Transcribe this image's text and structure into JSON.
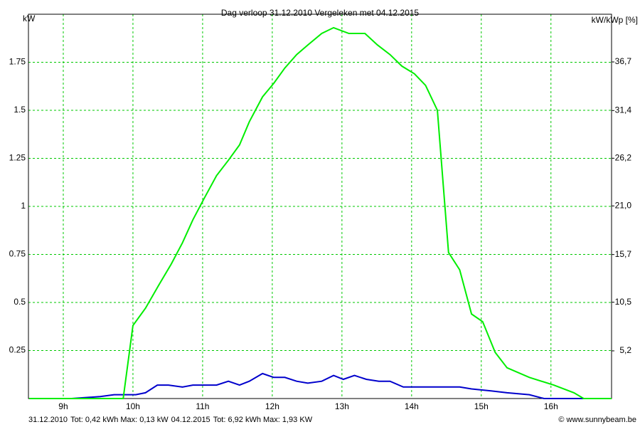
{
  "chart_data": {
    "type": "line",
    "title": "Dag  verloop 31.12.2010   Vergeleken met 04.12.2015",
    "y_label": "kW",
    "y2_label": "kW/kWp [%]",
    "xlim": [
      8.5,
      16.87
    ],
    "xticks": [
      {
        "value": 9,
        "label": "9h"
      },
      {
        "value": 10,
        "label": "10h"
      },
      {
        "value": 11,
        "label": "11h"
      },
      {
        "value": 12,
        "label": "12h"
      },
      {
        "value": 13,
        "label": "13h"
      },
      {
        "value": 14,
        "label": "14h"
      },
      {
        "value": 15,
        "label": "15h"
      },
      {
        "value": 16,
        "label": "16h"
      }
    ],
    "ylim": [
      0,
      2
    ],
    "yticks": [
      0.25,
      0.5,
      0.75,
      1,
      1.25,
      1.5,
      1.75
    ],
    "y2lim": [
      0,
      41.9
    ],
    "y2ticks": [
      {
        "value": 5.2,
        "label": "5,2"
      },
      {
        "value": 10.5,
        "label": "10,5"
      },
      {
        "value": 15.7,
        "label": "15,7"
      },
      {
        "value": 21.0,
        "label": "21,0"
      },
      {
        "value": 26.2,
        "label": "26,2"
      },
      {
        "value": 31.4,
        "label": "31,4"
      },
      {
        "value": 36.7,
        "label": "36,7"
      }
    ],
    "grid": true,
    "grid_color": "#00c800",
    "series": [
      {
        "name": "31.12.2010",
        "summary": "Tot: 0,42 kWh Max: 0,13 kW",
        "color": "#0000cc",
        "x": [
          8.51,
          9.12,
          9.53,
          9.73,
          10.04,
          10.18,
          10.35,
          10.51,
          10.71,
          10.86,
          11.02,
          11.2,
          11.37,
          11.53,
          11.67,
          11.86,
          12.02,
          12.18,
          12.35,
          12.51,
          12.71,
          12.88,
          13.02,
          13.18,
          13.35,
          13.53,
          13.69,
          13.88,
          14.04,
          14.37,
          14.69,
          14.86,
          15.14,
          15.37,
          15.69,
          15.9,
          16.87
        ],
        "values": [
          0,
          0,
          0.01,
          0.02,
          0.02,
          0.03,
          0.07,
          0.07,
          0.06,
          0.07,
          0.07,
          0.07,
          0.09,
          0.07,
          0.09,
          0.13,
          0.11,
          0.11,
          0.09,
          0.08,
          0.09,
          0.12,
          0.1,
          0.12,
          0.1,
          0.09,
          0.09,
          0.06,
          0.06,
          0.06,
          0.06,
          0.05,
          0.04,
          0.03,
          0.02,
          0,
          0
        ]
      },
      {
        "name": "04.12.2015",
        "summary": "Tot: 6,92 kWh Max: 1,93 KW",
        "color": "#00ee00",
        "x": [
          8.51,
          9.86,
          10.0,
          10.18,
          10.37,
          10.55,
          10.71,
          10.86,
          11.02,
          11.2,
          11.37,
          11.53,
          11.67,
          11.86,
          12.02,
          12.18,
          12.35,
          12.51,
          12.71,
          12.88,
          13.1,
          13.33,
          13.51,
          13.69,
          13.86,
          14.04,
          14.2,
          14.37,
          14.53,
          14.69,
          14.86,
          15.02,
          15.2,
          15.37,
          15.69,
          16.04,
          16.33,
          16.47,
          16.87
        ],
        "values": [
          0,
          0,
          0.38,
          0.47,
          0.59,
          0.7,
          0.81,
          0.93,
          1.04,
          1.16,
          1.24,
          1.32,
          1.44,
          1.57,
          1.64,
          1.72,
          1.79,
          1.84,
          1.9,
          1.93,
          1.9,
          1.9,
          1.84,
          1.79,
          1.73,
          1.69,
          1.63,
          1.5,
          0.76,
          0.67,
          0.44,
          0.4,
          0.24,
          0.16,
          0.11,
          0.07,
          0.03,
          0,
          0
        ]
      }
    ],
    "credit": "© www.sunnybeam.be"
  }
}
